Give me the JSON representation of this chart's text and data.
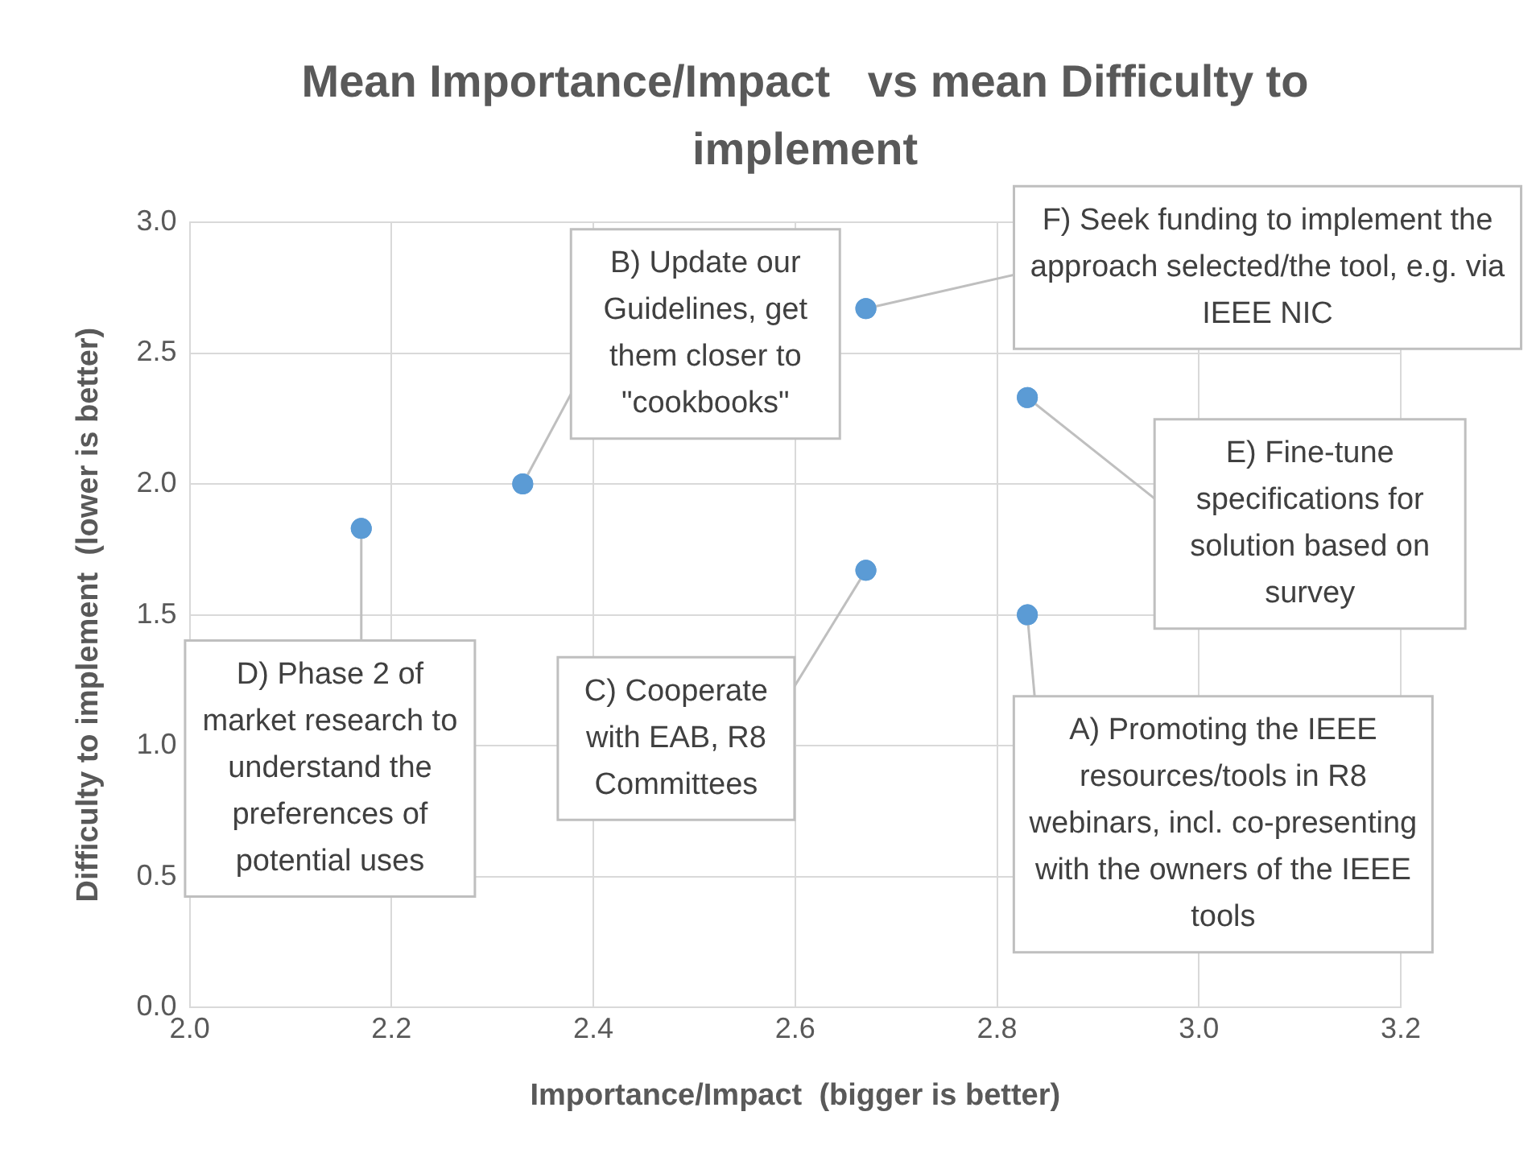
{
  "chart_data": {
    "type": "scatter",
    "title": "Mean Importance/Impact   vs mean Difficulty to implement",
    "xlabel": "Importance/Impact  (bigger is better)",
    "ylabel": "Difficulty to implement  (lower is better)",
    "x": [
      2.17,
      2.33,
      2.67,
      2.67,
      2.83,
      2.83
    ],
    "series": [
      {
        "color": "#5b9bd5",
        "values": [
          1.83,
          2.0,
          1.67,
          2.67,
          2.33,
          1.5
        ]
      }
    ],
    "xlim": [
      2.0,
      3.2
    ],
    "xticks": [
      {
        "value": 2.0,
        "label": "2.0"
      },
      {
        "value": 2.2,
        "label": "2.2"
      },
      {
        "value": 2.4,
        "label": "2.4"
      },
      {
        "value": 2.6,
        "label": "2.6"
      },
      {
        "value": 2.8,
        "label": "2.8"
      },
      {
        "value": 3.0,
        "label": "3.0"
      },
      {
        "value": 3.2,
        "label": "3.2"
      }
    ],
    "ylim": [
      0,
      3.0
    ],
    "yticks": [
      {
        "value": 0,
        "label": "0.0"
      },
      {
        "value": 0.5,
        "label": "0.5"
      },
      {
        "value": 1.0,
        "label": "1.0"
      },
      {
        "value": 1.5,
        "label": "1.5"
      },
      {
        "value": 2.0,
        "label": "2.0"
      },
      {
        "value": 2.5,
        "label": "2.5"
      },
      {
        "value": 3.0,
        "label": "3.0"
      }
    ],
    "grid": true,
    "marker": "circle",
    "legend": false,
    "annotations": [
      {
        "text": "D) Phase 2 of market research to understand the preferences of potential uses",
        "x": 2.17,
        "y": 1.83
      },
      {
        "text": "B) Update our Guidelines, get them closer to \"cookbooks\"",
        "x": 2.33,
        "y": 2.0
      },
      {
        "text": "C) Cooperate with EAB, R8 Committees",
        "x": 2.67,
        "y": 1.67
      },
      {
        "text": "F) Seek funding to implement the approach selected/the tool, e.g. via IEEE NIC",
        "x": 2.67,
        "y": 2.67
      },
      {
        "text": "E) Fine-tune specifications for solution based on survey",
        "x": 2.83,
        "y": 2.33
      },
      {
        "text": "A) Promoting the IEEE resources/tools in R8 webinars, incl. co-presenting with the owners of the IEEE tools",
        "x": 2.83,
        "y": 1.5
      }
    ]
  }
}
